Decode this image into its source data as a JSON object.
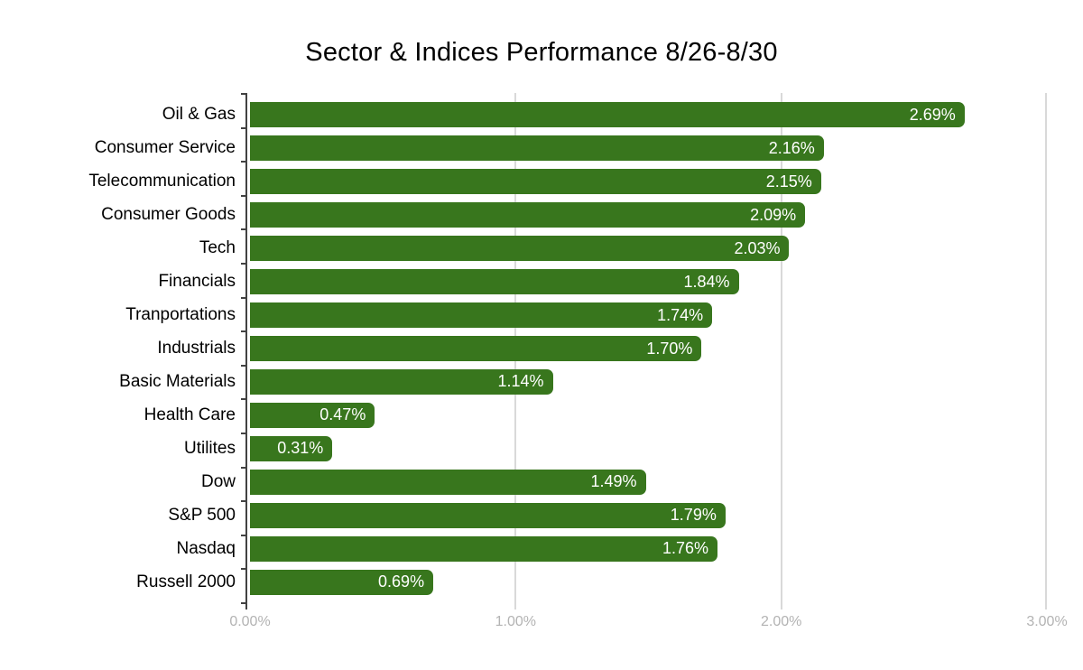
{
  "chart_data": {
    "type": "bar",
    "orientation": "horizontal",
    "title": "Sector & Indices Performance 8/26-8/30",
    "categories": [
      "Oil & Gas",
      "Consumer Service",
      "Telecommunication",
      "Consumer Goods",
      "Tech",
      "Financials",
      "Tranportations",
      "Industrials",
      "Basic Materials",
      "Health Care",
      "Utilites",
      "Dow",
      "S&P 500",
      "Nasdaq",
      "Russell 2000"
    ],
    "values": [
      2.69,
      2.16,
      2.15,
      2.09,
      2.03,
      1.84,
      1.74,
      1.7,
      1.14,
      0.47,
      0.31,
      1.49,
      1.79,
      1.76,
      0.69
    ],
    "value_labels": [
      "2.69%",
      "2.16%",
      "2.15%",
      "2.09%",
      "2.03%",
      "1.84%",
      "1.74%",
      "1.70%",
      "1.14%",
      "0.47%",
      "0.31%",
      "1.49%",
      "1.79%",
      "1.76%",
      "0.69%"
    ],
    "xlabel": "",
    "ylabel": "",
    "xlim": [
      0,
      3
    ],
    "x_ticks": [
      "0.00%",
      "1.00%",
      "2.00%",
      "3.00%"
    ],
    "x_tick_values": [
      0,
      1,
      2,
      3
    ],
    "grid": true,
    "legend": "none",
    "colors": {
      "bar": "#38761d",
      "value_label": "#ffffff",
      "gridline": "#d9d9d9",
      "axis_line": "#424242",
      "tick_label": "#b3b3b3",
      "title": "#000000",
      "background": "#ffffff"
    }
  }
}
